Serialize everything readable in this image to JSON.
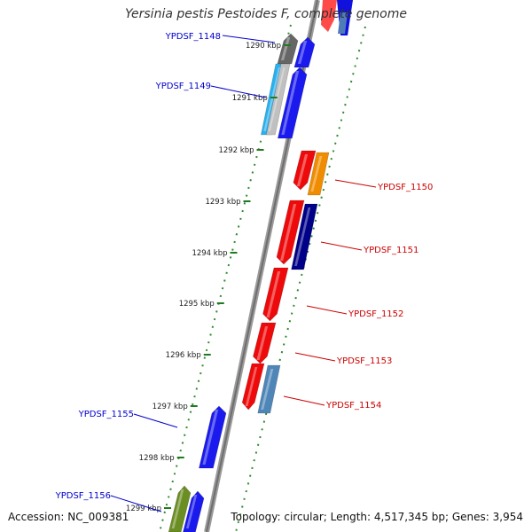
{
  "title": "Yersinia pestis Pestoides F, complete genome",
  "accession": "Accession: NC_009381",
  "topology": "Topology: circular; Length: 4,517,345 bp; Genes: 3,954",
  "colors": {
    "backbone": "#8c8c8c",
    "tick": "#2e8b2e",
    "label_left": "#0000cc",
    "label_right": "#cc0000"
  },
  "ruler_ticks": [
    "1290 kbp",
    "1291 kbp",
    "1292 kbp",
    "1293 kbp",
    "1294 kbp",
    "1295 kbp",
    "1296 kbp",
    "1297 kbp",
    "1298 kbp",
    "1299 kbp"
  ],
  "gene_labels": {
    "left": [
      "YPDSF_1148",
      "YPDSF_1149",
      "YPDSF_1155",
      "YPDSF_1156"
    ],
    "right": [
      "YPDSF_1150",
      "YPDSF_1151",
      "YPDSF_1152",
      "YPDSF_1153",
      "YPDSF_1154"
    ]
  }
}
